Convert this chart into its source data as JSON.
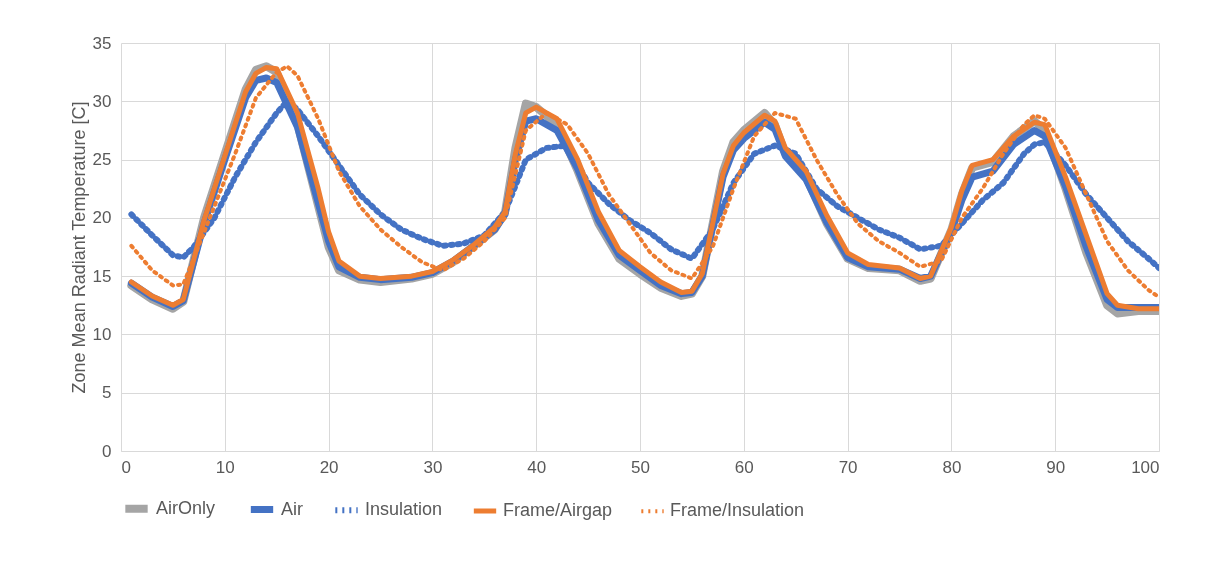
{
  "chart_data": {
    "type": "line",
    "ylabel": "Zone Mean Radiant Temperature [C]",
    "xlim": [
      0,
      100
    ],
    "xticks": [
      0,
      10,
      20,
      30,
      40,
      50,
      60,
      70,
      80,
      90,
      100
    ],
    "ylim": [
      0,
      35
    ],
    "yticks": [
      0,
      5,
      10,
      15,
      20,
      25,
      30,
      35
    ],
    "grid": true,
    "legend": "bottom",
    "series": [
      {
        "name": "AirOnly",
        "color": "#a5a5a5",
        "line_style": "solid",
        "x": [
          1,
          3,
          5,
          6,
          8,
          10,
          12,
          13,
          14,
          15,
          17,
          19,
          20,
          21,
          23,
          25,
          28,
          30,
          32,
          34,
          36,
          37,
          38,
          39,
          40,
          42,
          44,
          46,
          48,
          50,
          52,
          54,
          55,
          56,
          58,
          59,
          60,
          62,
          63,
          64,
          66,
          68,
          70,
          72,
          75,
          77,
          78,
          80,
          81,
          82,
          84,
          86,
          88,
          89,
          91,
          93,
          95,
          96,
          98,
          100
        ],
        "values": [
          14.2,
          13,
          12.2,
          12.8,
          20,
          25.5,
          31,
          32.7,
          33,
          32.5,
          28,
          21,
          17.5,
          15.5,
          14.7,
          14.5,
          14.8,
          15.2,
          16.2,
          17.6,
          19,
          20.5,
          26,
          29.8,
          29.5,
          28,
          24,
          19.5,
          16.5,
          15.2,
          14,
          13.3,
          13.5,
          15,
          24,
          26.5,
          27.5,
          29,
          28,
          25.5,
          23.5,
          19.5,
          16.5,
          15.7,
          15.5,
          14.6,
          14.8,
          19,
          22,
          24.3,
          24.8,
          27,
          28.3,
          27.5,
          22.5,
          17,
          12.5,
          11.8,
          12,
          12
        ]
      },
      {
        "name": "Air",
        "color": "#4472c4",
        "line_style": "solid",
        "x": [
          1,
          3,
          5,
          6,
          8,
          10,
          12,
          13,
          14,
          15,
          17,
          19,
          20,
          21,
          23,
          25,
          28,
          30,
          32,
          34,
          36,
          37,
          38,
          39,
          40,
          42,
          44,
          46,
          48,
          50,
          52,
          54,
          55,
          56,
          58,
          59,
          60,
          62,
          63,
          64,
          66,
          68,
          70,
          72,
          75,
          77,
          78,
          80,
          81,
          82,
          84,
          86,
          88,
          89,
          91,
          93,
          95,
          96,
          98,
          100
        ],
        "values": [
          14.4,
          13.2,
          12.4,
          12.9,
          19.5,
          25,
          30.3,
          31.8,
          32,
          31.6,
          27.8,
          21.3,
          18,
          15.8,
          14.9,
          14.7,
          14.9,
          15.3,
          16.3,
          17.6,
          19,
          20.3,
          25,
          28.3,
          28.5,
          27.5,
          24.2,
          19.8,
          16.8,
          15.5,
          14.2,
          13.5,
          13.6,
          15,
          23.5,
          25.8,
          26.8,
          28.2,
          27.6,
          25.3,
          23.3,
          19.6,
          16.6,
          15.8,
          15.6,
          14.8,
          15,
          18.8,
          21.5,
          23.5,
          24,
          26.3,
          27.5,
          27,
          22.7,
          17.5,
          13,
          12.3,
          12.3,
          12.3
        ]
      },
      {
        "name": "Insulation",
        "color": "#4472c4",
        "line_style": "dotted",
        "x": [
          1,
          3,
          5,
          6,
          7,
          9,
          11,
          13,
          15,
          16,
          17,
          19,
          21,
          23,
          25,
          27,
          29,
          31,
          33,
          35,
          37,
          39,
          41,
          43,
          45,
          47,
          49,
          51,
          53,
          55,
          57,
          59,
          61,
          63,
          65,
          67,
          69,
          71,
          73,
          75,
          77,
          79,
          81,
          83,
          85,
          87,
          88,
          89,
          91,
          93,
          95,
          97,
          99,
          100
        ],
        "values": [
          20.3,
          18.5,
          16.8,
          16.6,
          17.5,
          20,
          23.5,
          26.5,
          29,
          30,
          29.3,
          27,
          24.5,
          22,
          20.3,
          19,
          18.2,
          17.6,
          17.8,
          18.5,
          20.5,
          25,
          26,
          26.2,
          23,
          21.2,
          19.8,
          18.7,
          17.3,
          16.5,
          19,
          23,
          25.5,
          26.2,
          25.5,
          22.5,
          21,
          20,
          19,
          18.3,
          17.3,
          17.6,
          19.5,
          21.5,
          23,
          25.5,
          26.3,
          26.5,
          24.5,
          22,
          20,
          18,
          16.5,
          15.7
        ]
      },
      {
        "name": "Frame/Airgap",
        "color": "#ed7d31",
        "line_style": "solid",
        "x": [
          1,
          3,
          5,
          6,
          8,
          10,
          12,
          13,
          14,
          15,
          17,
          19,
          20,
          21,
          23,
          25,
          28,
          30,
          32,
          34,
          36,
          37,
          38,
          39,
          40,
          42,
          44,
          46,
          48,
          50,
          52,
          54,
          55,
          56,
          58,
          59,
          60,
          62,
          63,
          64,
          66,
          68,
          70,
          72,
          75,
          77,
          78,
          80,
          81,
          82,
          84,
          86,
          88,
          89,
          91,
          93,
          95,
          96,
          98,
          100
        ],
        "values": [
          14.5,
          13.3,
          12.5,
          13,
          19.8,
          25.3,
          30.8,
          32.4,
          32.9,
          32.8,
          29,
          22.5,
          18.8,
          16.3,
          15,
          14.8,
          15,
          15.4,
          16.4,
          17.7,
          19.2,
          20.5,
          25.5,
          29,
          29.5,
          28.5,
          25,
          20.5,
          17.2,
          15.8,
          14.5,
          13.6,
          13.7,
          15.2,
          23.8,
          26.2,
          27.3,
          28.8,
          28.3,
          26,
          24,
          20.2,
          17,
          16,
          15.7,
          14.8,
          15,
          19.2,
          22.3,
          24.5,
          25,
          27,
          28.2,
          28,
          23.5,
          18.5,
          13.5,
          12.5,
          12.2,
          12.2
        ]
      },
      {
        "name": "Frame/Insulation",
        "color": "#ed7d31",
        "line_style": "dotted",
        "x": [
          1,
          3,
          5,
          6,
          7,
          9,
          11,
          13,
          15,
          16,
          17,
          19,
          21,
          23,
          25,
          27,
          29,
          31,
          33,
          35,
          37,
          39,
          41,
          43,
          45,
          47,
          49,
          51,
          53,
          55,
          57,
          59,
          61,
          63,
          65,
          67,
          69,
          71,
          73,
          75,
          77,
          79,
          81,
          83,
          85,
          87,
          88,
          89,
          91,
          93,
          95,
          97,
          99,
          100
        ],
        "values": [
          17.6,
          15.5,
          14.2,
          14.3,
          16.5,
          21,
          25.5,
          30.3,
          32.5,
          33,
          32.2,
          28.5,
          24,
          21,
          19,
          17.5,
          16.2,
          15.5,
          16.5,
          18,
          20,
          27.5,
          29,
          28,
          25.5,
          22,
          19.5,
          17,
          15.5,
          14.8,
          17.5,
          22.5,
          27,
          29,
          28.5,
          25,
          22,
          19.5,
          18,
          17,
          15.8,
          16.3,
          20,
          22.5,
          25.5,
          28,
          28.8,
          28.5,
          26,
          22,
          18,
          15.5,
          13.8,
          13.2
        ]
      }
    ]
  }
}
